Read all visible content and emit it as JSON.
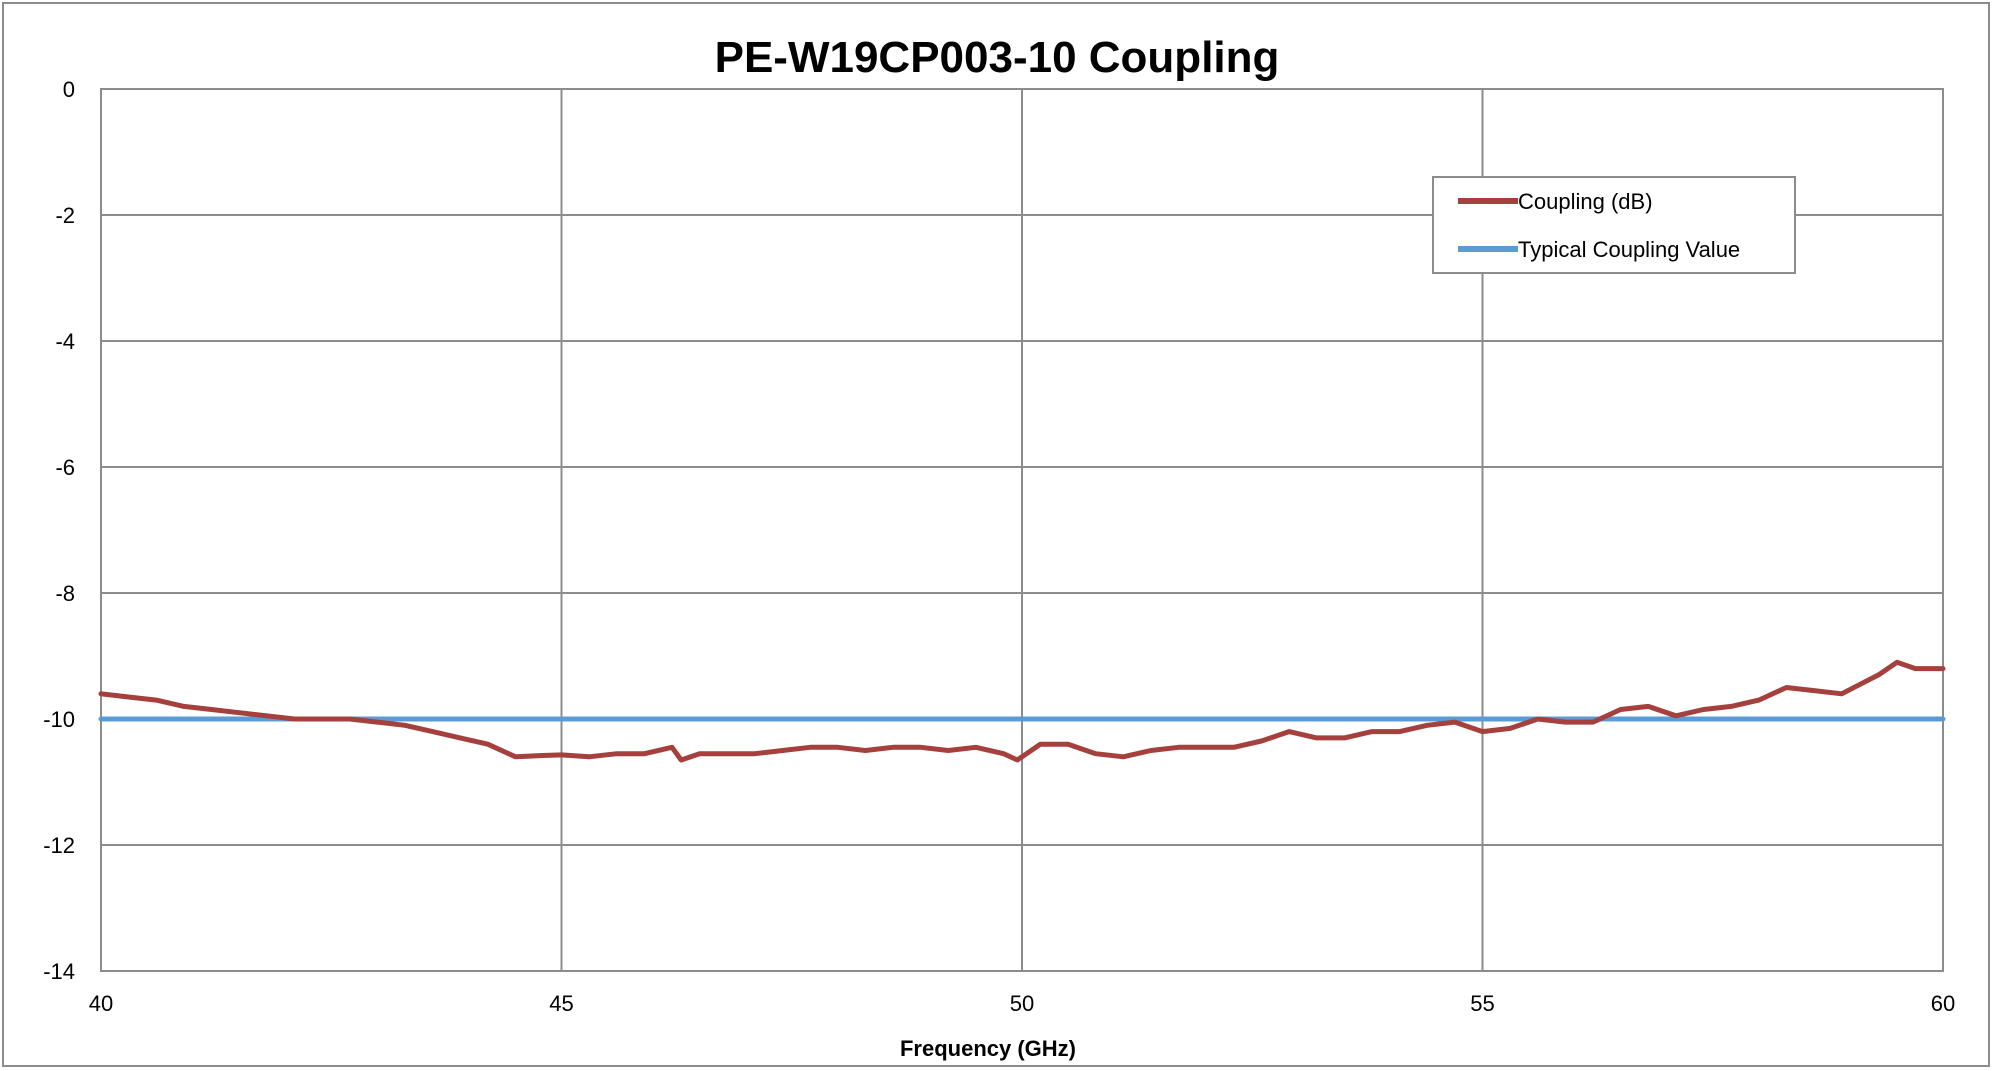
{
  "chart_data": {
    "type": "line",
    "title": "PE-W19CP003-10 Coupling",
    "xlabel": "Frequency (GHz)",
    "ylabel": "",
    "xlim": [
      40,
      60
    ],
    "ylim": [
      -14,
      0
    ],
    "x_ticks": [
      40,
      45,
      50,
      55,
      60
    ],
    "y_ticks": [
      0,
      -2,
      -4,
      -6,
      -8,
      -10,
      -12,
      -14
    ],
    "grid": true,
    "legend_position": "top-right",
    "series": [
      {
        "name": "Coupling (dB)",
        "color": "#a5403d",
        "x": [
          40.0,
          40.3,
          40.6,
          40.9,
          41.2,
          41.5,
          41.8,
          42.1,
          42.4,
          42.7,
          43.0,
          43.3,
          43.6,
          43.9,
          44.2,
          44.5,
          44.8,
          45.0,
          45.3,
          45.6,
          45.9,
          46.2,
          46.3,
          46.5,
          46.8,
          47.1,
          47.4,
          47.7,
          48.0,
          48.3,
          48.6,
          48.9,
          49.2,
          49.5,
          49.8,
          49.95,
          50.2,
          50.5,
          50.8,
          51.1,
          51.4,
          51.7,
          52.0,
          52.3,
          52.6,
          52.9,
          53.2,
          53.5,
          53.8,
          54.1,
          54.4,
          54.7,
          55.0,
          55.3,
          55.6,
          55.9,
          56.2,
          56.5,
          56.8,
          57.1,
          57.4,
          57.7,
          58.0,
          58.3,
          58.6,
          58.9,
          59.1,
          59.3,
          59.5,
          59.7,
          60.0
        ],
        "values": [
          -9.6,
          -9.65,
          -9.7,
          -9.8,
          -9.85,
          -9.9,
          -9.95,
          -10.0,
          -10.0,
          -10.0,
          -10.05,
          -10.1,
          -10.2,
          -10.3,
          -10.4,
          -10.6,
          -10.58,
          -10.57,
          -10.6,
          -10.55,
          -10.55,
          -10.45,
          -10.65,
          -10.55,
          -10.55,
          -10.55,
          -10.5,
          -10.45,
          -10.45,
          -10.5,
          -10.45,
          -10.45,
          -10.5,
          -10.45,
          -10.55,
          -10.65,
          -10.4,
          -10.4,
          -10.55,
          -10.6,
          -10.5,
          -10.45,
          -10.45,
          -10.45,
          -10.35,
          -10.2,
          -10.3,
          -10.3,
          -10.2,
          -10.2,
          -10.1,
          -10.05,
          -10.2,
          -10.15,
          -10.0,
          -10.05,
          -10.05,
          -9.85,
          -9.8,
          -9.95,
          -9.85,
          -9.8,
          -9.7,
          -9.5,
          -9.55,
          -9.6,
          -9.45,
          -9.3,
          -9.1,
          -9.2,
          -9.2
        ]
      },
      {
        "name": "Typical Coupling Value",
        "color": "#5b9bd5",
        "x": [
          40,
          60
        ],
        "values": [
          -10,
          -10
        ]
      }
    ]
  }
}
